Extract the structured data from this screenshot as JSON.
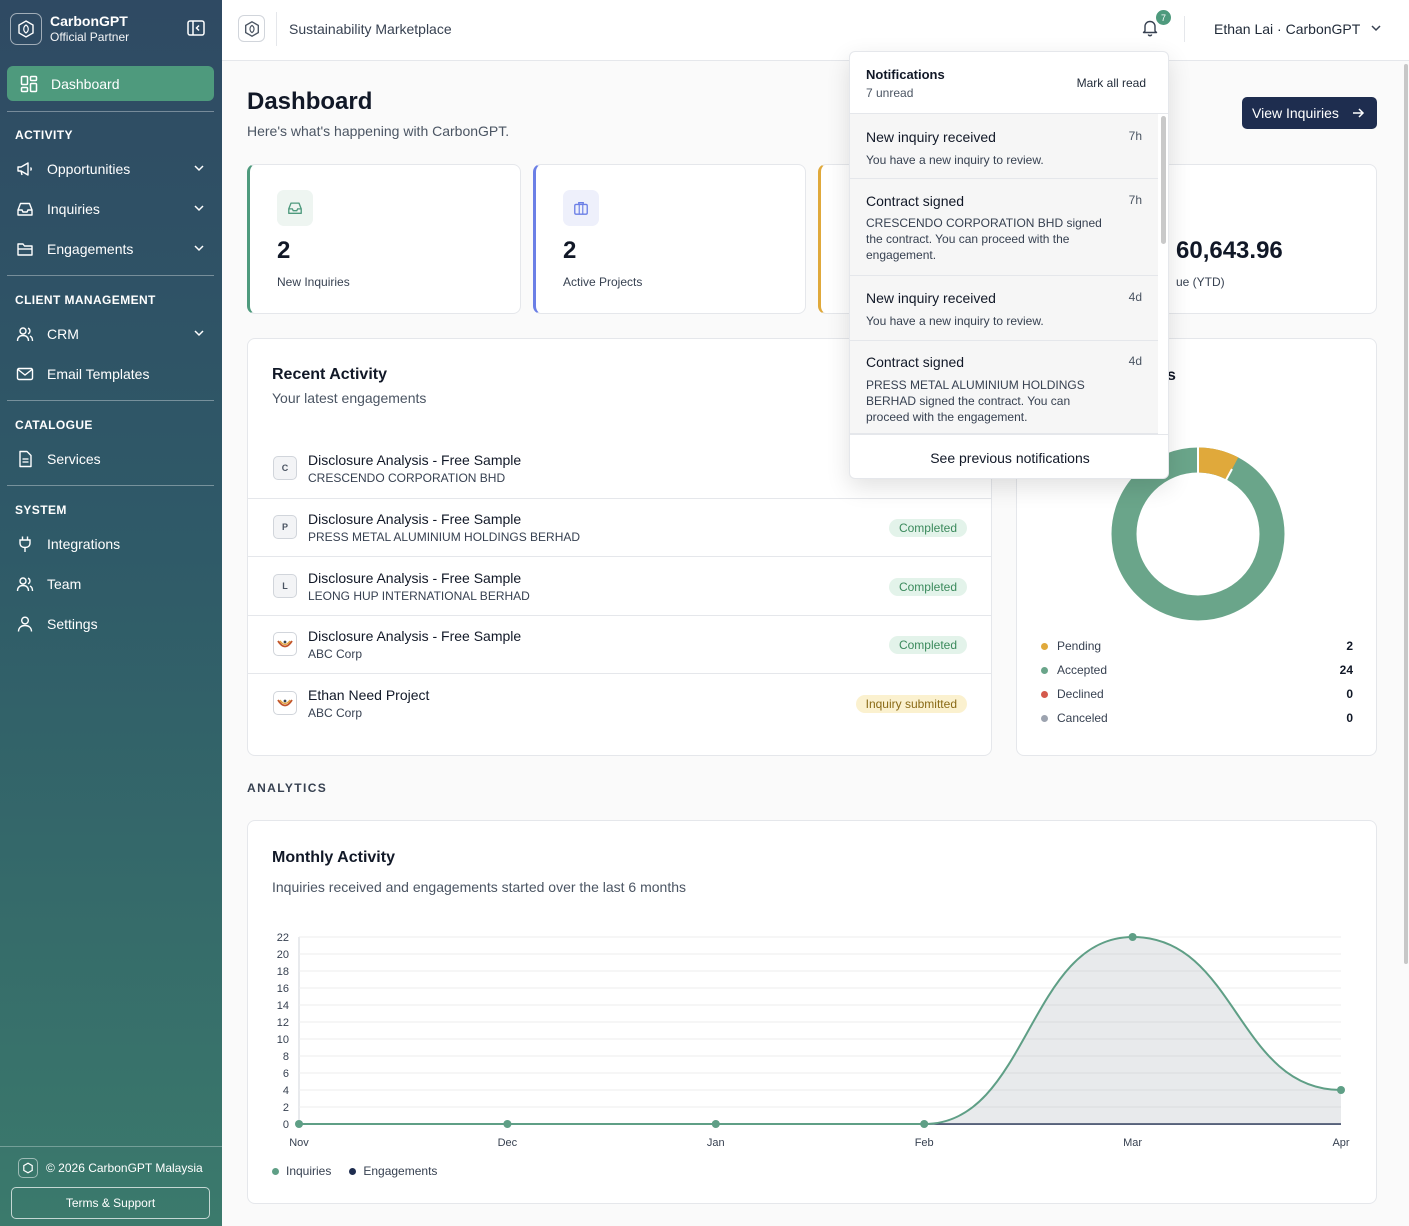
{
  "sidebar": {
    "brand_name": "CarbonGPT",
    "brand_sub": "Official Partner",
    "active_item": "Dashboard",
    "sections": [
      {
        "title": "ACTIVITY",
        "items": [
          "Opportunities",
          "Inquiries",
          "Engagements"
        ]
      },
      {
        "title": "CLIENT MANAGEMENT",
        "items": [
          "CRM",
          "Email Templates"
        ]
      },
      {
        "title": "CATALOGUE",
        "items": [
          "Services"
        ]
      },
      {
        "title": "SYSTEM",
        "items": [
          "Integrations",
          "Team",
          "Settings"
        ]
      }
    ],
    "copyright": "© 2026 CarbonGPT Malaysia",
    "terms": "Terms & Support"
  },
  "topbar": {
    "title": "Sustainability Marketplace",
    "bell_count": "7",
    "user": "Ethan Lai · CarbonGPT"
  },
  "page": {
    "title": "Dashboard",
    "subtitle": "Here's what's happening with CarbonGPT.",
    "view_inquiries": "View Inquiries"
  },
  "stats": [
    {
      "value": "2",
      "label": "New Inquiries",
      "accent": "#4e9a7d"
    },
    {
      "value": "2",
      "label": "Active Projects",
      "accent": "#6b7fe6"
    },
    {
      "value": "",
      "label": "",
      "accent": "#e0a93b"
    },
    {
      "value": "60,643.96",
      "label": "ue (YTD)",
      "accent": "#e5e7eb"
    }
  ],
  "recent": {
    "title": "Recent Activity",
    "subtitle": "Your latest engagements",
    "rows": [
      {
        "avatar": "C",
        "title": "Disclosure Analysis - Free Sample",
        "client": "CRESCENDO CORPORATION BHD",
        "status": ""
      },
      {
        "avatar": "P",
        "title": "Disclosure Analysis - Free Sample",
        "client": "PRESS METAL ALUMINIUM HOLDINGS BERHAD",
        "status": "Completed"
      },
      {
        "avatar": "L",
        "title": "Disclosure Analysis - Free Sample",
        "client": "LEONG HUP INTERNATIONAL BERHAD",
        "status": "Completed"
      },
      {
        "avatar": "",
        "title": "Disclosure Analysis - Free Sample",
        "client": "ABC Corp",
        "status": "Completed"
      },
      {
        "avatar": "",
        "title": "Ethan Need Project",
        "client": "ABC Corp",
        "status": "Inquiry submitted"
      }
    ]
  },
  "status_card": {
    "title_fragment": "s",
    "legend": [
      {
        "label": "Pending",
        "value": "2",
        "color": "#e0a93b"
      },
      {
        "label": "Accepted",
        "value": "24",
        "color": "#6aa58a"
      },
      {
        "label": "Declined",
        "value": "0",
        "color": "#d45a4c"
      },
      {
        "label": "Canceled",
        "value": "0",
        "color": "#9ca3af"
      }
    ]
  },
  "analytics_label": "ANALYTICS",
  "chart_data": {
    "type": "area",
    "title": "Monthly Activity",
    "subtitle": "Inquiries received and engagements started over the last 6 months",
    "categories": [
      "Nov",
      "Dec",
      "Jan",
      "Feb",
      "Mar",
      "Apr"
    ],
    "series": [
      {
        "name": "Inquiries",
        "values": [
          0,
          0,
          0,
          0,
          22,
          4
        ],
        "color": "#5f9f86"
      },
      {
        "name": "Engagements",
        "values": [
          0,
          0,
          0,
          0,
          0,
          0
        ],
        "color": "#1e2d4f"
      }
    ],
    "ylim": [
      0,
      22
    ],
    "yticks": [
      0,
      2,
      4,
      6,
      8,
      10,
      12,
      14,
      16,
      18,
      20,
      22
    ],
    "legend": "bottom-left",
    "grid": true
  },
  "notifications": {
    "title": "Notifications",
    "unread": "7 unread",
    "mark_all": "Mark all read",
    "items": [
      {
        "title": "New inquiry received",
        "body": "You have a new inquiry to review.",
        "time": "7h"
      },
      {
        "title": "Contract signed",
        "body": "CRESCENDO CORPORATION BHD signed the contract. You can proceed with the engagement.",
        "time": "7h"
      },
      {
        "title": "New inquiry received",
        "body": "You have a new inquiry to review.",
        "time": "4d"
      },
      {
        "title": "Contract signed",
        "body": "PRESS METAL ALUMINIUM HOLDINGS BERHAD signed the contract. You can proceed with the engagement.",
        "time": "4d"
      }
    ],
    "see_previous": "See previous notifications"
  }
}
